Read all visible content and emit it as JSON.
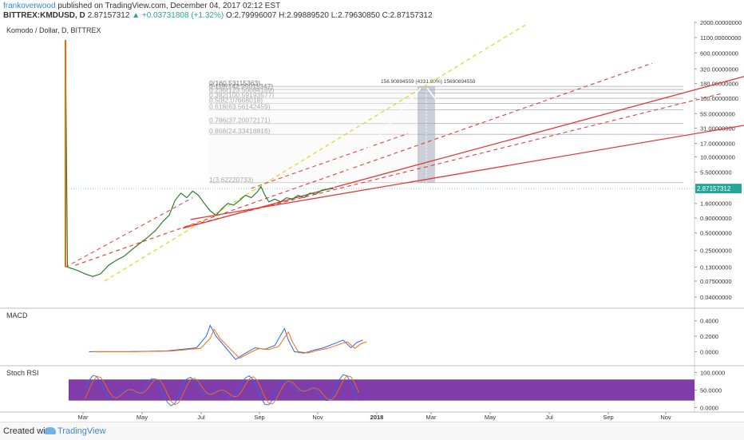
{
  "header": {
    "author": "frankoverwood",
    "published": "published on TradingView.com, December 04, 2017 02:12 EST",
    "symbol": "BITTREX:KMDUSD, D",
    "last": "2.87157312",
    "change": "▲ +0.03731808 (+1.32%)",
    "ohlc": "O:2.79996007 H:2.99889520 L:2.79630850 C:2.87157312"
  },
  "footer": {
    "created_with": "Created with",
    "brand": "TradingView"
  },
  "chart_data": [
    {
      "type": "line",
      "title": "Komodo / Dollar, D, BITTREX",
      "scale": "log",
      "x_ticks": [
        "Mar",
        "May",
        "Jul",
        "Sep",
        "Nov",
        "2018",
        "Mar",
        "May",
        "Jul",
        "Sep",
        "Nov"
      ],
      "y_ticks": [
        "2000.00000000",
        "1100.00000000",
        "600.00000000",
        "320.00000000",
        "180.00000000",
        "100.00000000",
        "55.00000000",
        "31.00000000",
        "17.00000000",
        "10.00000000",
        "5.50000000",
        "2.87157312",
        "1.60000000",
        "0.90000000",
        "0.50000000",
        "0.25000000",
        "0.13000000",
        "0.07500000",
        "0.04000000"
      ],
      "y_tick_values": [
        2000,
        1100,
        600,
        320,
        180,
        100,
        55,
        31,
        17,
        10,
        5.5,
        2.87157312,
        1.6,
        0.9,
        0.5,
        0.25,
        0.13,
        0.075,
        0.04
      ],
      "last_price": "2.87157312",
      "price_series": [
        [
          0,
          1000
        ],
        [
          1,
          0.13
        ],
        [
          6,
          0.115
        ],
        [
          10,
          0.1
        ],
        [
          14,
          0.09
        ],
        [
          18,
          0.1
        ],
        [
          22,
          0.14
        ],
        [
          26,
          0.17
        ],
        [
          30,
          0.2
        ],
        [
          34,
          0.26
        ],
        [
          38,
          0.33
        ],
        [
          42,
          0.42
        ],
        [
          46,
          0.55
        ],
        [
          50,
          0.8
        ],
        [
          53,
          1.0
        ],
        [
          56,
          1.8
        ],
        [
          59,
          2.4
        ],
        [
          62,
          2.0
        ],
        [
          65,
          2.6
        ],
        [
          68,
          2.2
        ],
        [
          71,
          1.6
        ],
        [
          74,
          1.2
        ],
        [
          77,
          1.0
        ],
        [
          80,
          1.3
        ],
        [
          83,
          1.6
        ],
        [
          86,
          1.5
        ],
        [
          89,
          1.8
        ],
        [
          92,
          2.2
        ],
        [
          95,
          2.0
        ],
        [
          98,
          2.5
        ],
        [
          100,
          3.1
        ],
        [
          102,
          2.2
        ],
        [
          104,
          1.7
        ],
        [
          107,
          1.9
        ],
        [
          110,
          1.7
        ],
        [
          113,
          2.0
        ],
        [
          116,
          1.9
        ],
        [
          119,
          2.2
        ],
        [
          122,
          2.0
        ],
        [
          125,
          2.4
        ],
        [
          128,
          2.3
        ],
        [
          131,
          2.7
        ],
        [
          134,
          2.8
        ],
        [
          137,
          2.87
        ]
      ],
      "fib_levels": [
        {
          "label": "0(160.53115363)",
          "value": 160.53
        },
        {
          "label": "0.118(142.25011347)",
          "value": 142.25
        },
        {
          "label": "0.236(123.50084189)",
          "value": 123.5
        },
        {
          "label": "0.382(100.59193577)",
          "value": 100.59
        },
        {
          "label": "0.5(82.07668018)",
          "value": 82.08
        },
        {
          "label": "0.618(63.56142459)",
          "value": 63.56
        },
        {
          "label": "0.786(37.20072171)",
          "value": 37.2
        },
        {
          "label": "0.868(24.33418816)",
          "value": 24.33
        },
        {
          "label": "1(3.62220733)",
          "value": 3.62
        }
      ],
      "measure_label": "156.90894559 (4331.80%) 15690894559"
    },
    {
      "type": "line",
      "title": "MACD",
      "y_ticks": [
        "0.4000",
        "0.2000",
        "0.0000"
      ],
      "y_tick_values": [
        0.4,
        0.2,
        0.0
      ],
      "ylim": [
        -0.12,
        0.5
      ]
    },
    {
      "type": "line",
      "title": "Stoch RSI",
      "y_ticks": [
        "100.0000",
        "50.0000",
        "0.0000"
      ],
      "y_tick_values": [
        100,
        50,
        0
      ],
      "ylim": [
        -8,
        110
      ],
      "band": [
        20,
        80
      ]
    }
  ]
}
